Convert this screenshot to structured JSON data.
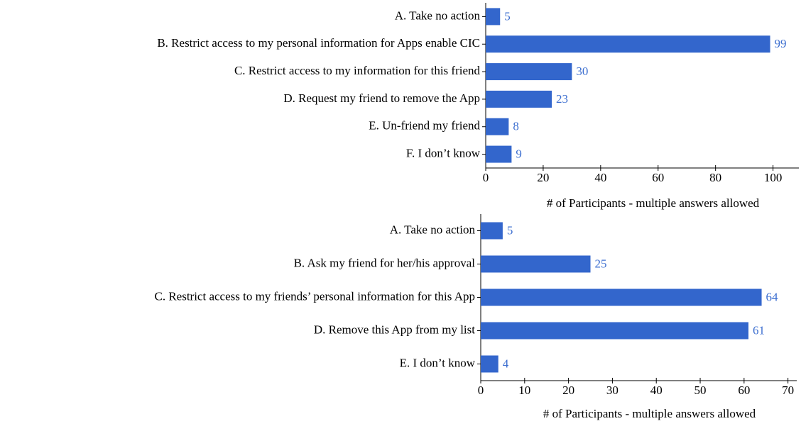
{
  "chart_data": [
    {
      "type": "bar",
      "orientation": "horizontal",
      "categories": [
        "A. Take no action",
        "B. Restrict access to my personal information for Apps enable CIC",
        "C. Restrict access to my information for this friend",
        "D. Request my friend to remove the App",
        "E. Un-friend my friend",
        "F. I don’t know"
      ],
      "values": [
        5,
        99,
        30,
        23,
        8,
        9
      ],
      "color": "#3366cc",
      "xlabel": "# of Participants - multiple answers allowed",
      "xlim": [
        0,
        109
      ],
      "xticks": [
        0,
        20,
        40,
        60,
        80,
        100
      ]
    },
    {
      "type": "bar",
      "orientation": "horizontal",
      "categories": [
        "A. Take no action",
        "B. Ask my friend for her/his approval",
        "C. Restrict access to my friends’ personal information for this App",
        "D. Remove this App from my list",
        "E. I don’t know"
      ],
      "values": [
        5,
        25,
        64,
        61,
        4
      ],
      "color": "#3366cc",
      "xlabel": "# of Participants - multiple answers allowed",
      "xlim": [
        0,
        72
      ],
      "xticks": [
        0,
        10,
        20,
        30,
        40,
        50,
        60,
        70
      ]
    }
  ]
}
